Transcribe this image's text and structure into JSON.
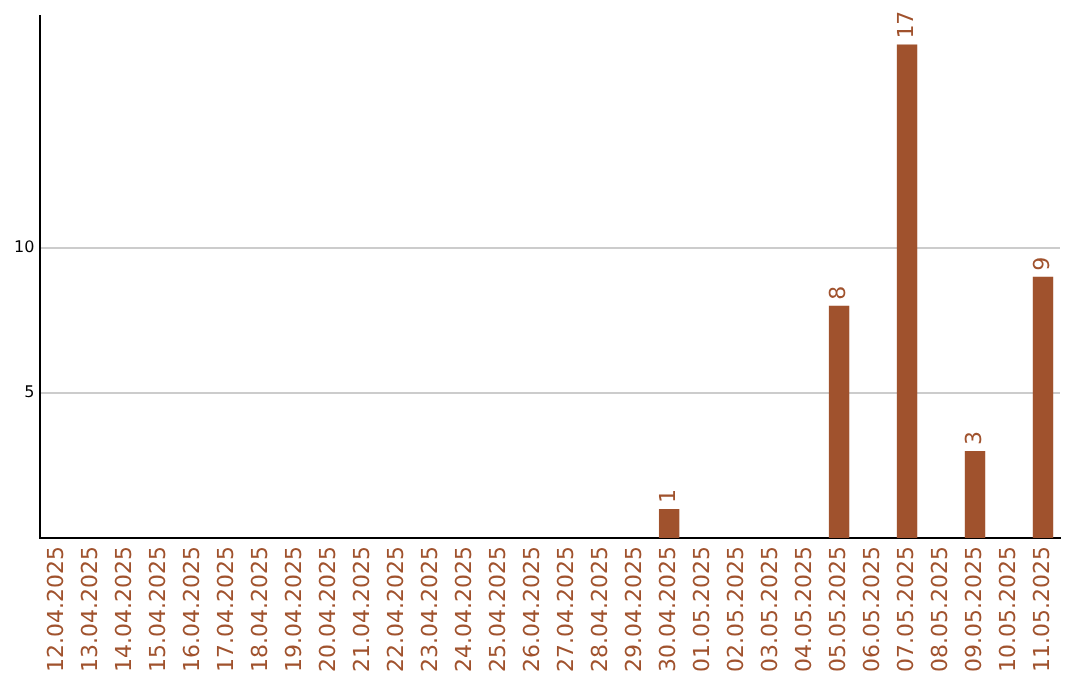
{
  "chart_data": {
    "type": "bar",
    "categories": [
      "12.04.2025",
      "13.04.2025",
      "14.04.2025",
      "15.04.2025",
      "16.04.2025",
      "17.04.2025",
      "18.04.2025",
      "19.04.2025",
      "20.04.2025",
      "21.04.2025",
      "22.04.2025",
      "23.04.2025",
      "24.04.2025",
      "25.04.2025",
      "26.04.2025",
      "27.04.2025",
      "28.04.2025",
      "29.04.2025",
      "30.04.2025",
      "01.05.2025",
      "02.05.2025",
      "03.05.2025",
      "04.05.2025",
      "05.05.2025",
      "06.05.2025",
      "07.05.2025",
      "08.05.2025",
      "09.05.2025",
      "10.05.2025",
      "11.05.2025"
    ],
    "values": [
      0,
      0,
      0,
      0,
      0,
      0,
      0,
      0,
      0,
      0,
      0,
      0,
      0,
      0,
      0,
      0,
      0,
      0,
      1,
      0,
      0,
      0,
      0,
      8,
      0,
      17,
      0,
      3,
      0,
      9
    ],
    "value_labels": [
      null,
      null,
      null,
      null,
      null,
      null,
      null,
      null,
      null,
      null,
      null,
      null,
      null,
      null,
      null,
      null,
      null,
      null,
      "1",
      null,
      null,
      null,
      null,
      "8",
      null,
      "17",
      null,
      "3",
      null,
      "9"
    ],
    "color": "#a0522d",
    "ylim": [
      0,
      18
    ],
    "yticks": [
      5,
      10
    ],
    "grid": "y",
    "legend": false
  }
}
